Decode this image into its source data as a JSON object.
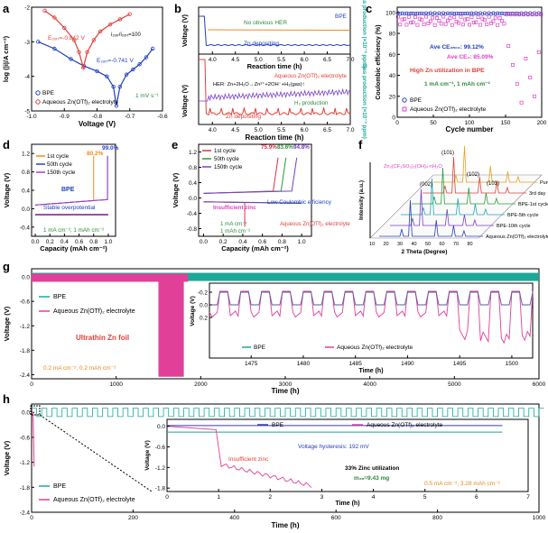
{
  "chart_data": [
    {
      "panel": "a",
      "type": "line",
      "xlabel": "Voltage (V)",
      "ylabel": "log (|i|/A cm⁻²)",
      "xlim": [
        -1.0,
        -0.6
      ],
      "ylim": [
        -5,
        -2
      ],
      "xticks": [
        "-1.0",
        "-0.9",
        "-0.8",
        "-0.7",
        "-0.6"
      ],
      "yticks": [
        "-5",
        "-4",
        "-3",
        "-2"
      ],
      "series": [
        {
          "name": "BPE",
          "color": "#1f3fbf",
          "x": [
            -0.98,
            -0.93,
            -0.88,
            -0.84,
            -0.8,
            -0.77,
            -0.75,
            -0.741,
            -0.73,
            -0.71,
            -0.69,
            -0.67,
            -0.65,
            -0.63
          ],
          "y": [
            -3.0,
            -3.2,
            -3.5,
            -3.7,
            -3.85,
            -4.0,
            -4.3,
            -4.85,
            -4.3,
            -3.95,
            -3.8,
            -3.65,
            -3.45,
            -3.2
          ]
        },
        {
          "name": "Aqueous Zn(OTf)₂ electrolyte",
          "color": "#e0403a",
          "x": [
            -0.96,
            -0.93,
            -0.9,
            -0.87,
            -0.855,
            -0.842,
            -0.83,
            -0.81,
            -0.79,
            -0.76,
            -0.73,
            -0.7
          ],
          "y": [
            -2.1,
            -2.3,
            -2.6,
            -2.95,
            -3.3,
            -3.75,
            -3.3,
            -2.95,
            -2.7,
            -2.5,
            -2.35,
            -2.2
          ]
        }
      ],
      "annotations": {
        "ecorr1": "E₂ₒᵣᵣ=-0.842 V",
        "ecorr2": "E₂ₒᵣᵣ=-0.741 V",
        "ratio": "i₂ₒᵣᵣ/i₂ₒᵣᵣ=100",
        "rate": "1 mV s⁻¹"
      }
    },
    {
      "panel": "b",
      "type": "line",
      "xlabel": "Reaction time (h)",
      "ylabel_left": "Voltage (V)",
      "ylabel_right": "Gas production (×10⁻³ ppm)",
      "xlim": [
        3.7,
        7.0
      ],
      "xticks": [
        "4.0",
        "4.5",
        "5.0",
        "5.5",
        "6.0",
        "6.5",
        "7.0"
      ],
      "top": {
        "label": "BPE",
        "note1": "No obvious HER",
        "note2": "Zn depositing",
        "voltage": [
          0.8,
          0.05
        ],
        "gas_level": 1.0
      },
      "bottom": {
        "label": "Aqueous Zn(OTf)₂ electrolyte",
        "note1": "HER: Zn+2H₂O→Zn²⁺+2OH⁻+H₂(gas)↑",
        "note2": "Zn depositing",
        "note3": "H₂ production"
      }
    },
    {
      "panel": "c",
      "type": "scatter",
      "xlabel": "Cycle number",
      "ylabel": "Coulombic efficiency (%)",
      "xlim": [
        0,
        200
      ],
      "ylim": [
        0,
        105
      ],
      "xticks": [
        "0",
        "50",
        "100",
        "150",
        "200"
      ],
      "yticks": [
        "0",
        "20",
        "40",
        "60",
        "80",
        "100"
      ],
      "series": [
        {
          "name": "BPE",
          "color": "#2a3fbf",
          "mean": 99.12
        },
        {
          "name": "Aqueous Zn(OTf)₂ electrolyte",
          "color": "#e040c8",
          "mean": 85.09
        }
      ],
      "annotations": {
        "ce1": "Ave CE₂ₙ₀₂: 99.12%",
        "ce2": "Ave CE₂: 85.09%",
        "note": "High Zn utilization in BPE",
        "cond": "1 mA cm⁻², 1 mAh cm⁻²"
      }
    },
    {
      "panel": "d",
      "type": "line",
      "xlabel": "Capacity (mAh cm⁻²)",
      "ylabel": "Voltage (V)",
      "xlim": [
        -0.05,
        1.1
      ],
      "ylim": [
        -0.6,
        1.4
      ],
      "xticks": [
        "0.0",
        "0.2",
        "0.4",
        "0.6",
        "0.8",
        "1.0"
      ],
      "yticks": [
        "-0.4",
        "0.0",
        "0.4",
        "0.8",
        "1.2"
      ],
      "series": [
        {
          "name": "1st cycle",
          "color": "#f08a1c",
          "end_capacity": 0.8,
          "label": "80.2%"
        },
        {
          "name": "50th cycle",
          "color": "#2a3fd0",
          "end_capacity": 0.99,
          "label": "99.0%"
        },
        {
          "name": "150th cycle",
          "color": "#a23fc8",
          "end_capacity": 0.99
        }
      ],
      "annotations": {
        "electrolyte": "BPE",
        "note": "Stable overpotential",
        "cond": "1 mA cm⁻², 1 mAh cm⁻²"
      }
    },
    {
      "panel": "e",
      "type": "line",
      "xlabel": "Capacity (mAh cm⁻²)",
      "ylabel": "Voltage (V)",
      "xlim": [
        -0.05,
        1.1
      ],
      "ylim": [
        -1.0,
        1.4
      ],
      "xticks": [
        "0.0",
        "0.2",
        "0.4",
        "0.6",
        "0.8",
        "1.0"
      ],
      "yticks": [
        "-0.8",
        "-0.4",
        "0.0",
        "0.4",
        "0.8",
        "1.2"
      ],
      "series": [
        {
          "name": "1st cycle",
          "color": "#e0304a",
          "label": "75.9%"
        },
        {
          "name": "50th cycle",
          "color": "#2a9a3a",
          "label": "83.6%"
        },
        {
          "name": "150th cycle",
          "color": "#7a3fc8",
          "label": "94.8%"
        }
      ],
      "annotations": {
        "n1": "Insufficient zinc",
        "n2": "Low Coulombic efficiency",
        "cond": "1 mA cm⁻²\n1 mAh cm⁻²",
        "electrolyte": "Aqueous Zn(OTf)₂ electrolyte"
      }
    },
    {
      "panel": "f",
      "type": "line",
      "xlabel": "2 Theta (Degree)",
      "ylabel": "Intensity (a.u.)",
      "xticks": [
        "10",
        "20",
        "30",
        "40",
        "50",
        "60",
        "70",
        "80"
      ],
      "series": [
        "Pure Zn",
        "3rd day",
        "BPE-1st cycle",
        "BPE-5th cycle",
        "BPE-10th cycle",
        "Aqueous Zn(OTf)₂ electrolyte-10th cycle"
      ],
      "peaks": [
        "(002)",
        "(101)",
        "(102)",
        "(103)"
      ],
      "annotation": "Zn₃(CF₃SO₃)₂(OH)₄·nH₂O"
    },
    {
      "panel": "g",
      "type": "line",
      "xlabel": "Time (h)",
      "ylabel": "Voltage (V)",
      "xlim": [
        0,
        6000
      ],
      "ylim": [
        -2.4,
        0.1
      ],
      "xticks": [
        "0",
        "1000",
        "2000",
        "3000",
        "4000",
        "5000",
        "6000"
      ],
      "yticks": [
        "-2.4",
        "-1.8",
        "-1.2",
        "-0.6",
        "0.0"
      ],
      "series": [
        {
          "name": "BPE",
          "color": "#1aa898"
        },
        {
          "name": "Aqueous Zn(OTf)₂ electrolyte",
          "color": "#e04098"
        }
      ],
      "annotations": {
        "foil": "Ultrathin Zn foil",
        "cond": "0.2 mA cm⁻², 0.2 mAh cm⁻²"
      },
      "inset": {
        "xlabel": "Time (h)",
        "ylabel": "Voltage (V)",
        "xlim": [
          1471,
          1502
        ],
        "xticks": [
          "1475",
          "1480",
          "1485",
          "1490",
          "1495",
          "1500"
        ],
        "yticks": [
          "-0.2",
          "0.0",
          "0.2"
        ]
      }
    },
    {
      "panel": "h",
      "type": "line",
      "xlabel": "Time (h)",
      "ylabel": "Voltage (V)",
      "xlim": [
        0,
        1000
      ],
      "ylim": [
        -2.4,
        0.2
      ],
      "xticks": [
        "0",
        "200",
        "400",
        "600",
        "800",
        "1000"
      ],
      "yticks": [
        "-2.4",
        "-1.8",
        "-1.2",
        "-0.6",
        "0.0"
      ],
      "series": [
        {
          "name": "BPE",
          "color": "#1aa898"
        },
        {
          "name": "Aqueous Zn(OTf)₂ electrolyte",
          "color": "#e04098"
        }
      ],
      "inset": {
        "xlabel": "Time (h)",
        "ylabel": "Voltage (V)",
        "xlim": [
          0,
          7
        ],
        "xticks": [
          "0",
          "1",
          "2",
          "3",
          "4",
          "5",
          "6",
          "7"
        ],
        "yticks": [
          "-1.8",
          "-1.2",
          "-0.6",
          "0.0"
        ],
        "annotations": {
          "hys": "Voltage hysteresis: 192 mV",
          "zinc": "Insufficient zinc",
          "util": "33% Zinc utilization",
          "mass": "m₂ₙ=9.43 mg",
          "cond": "0.5 mA cm⁻², 3.28 mAh cm⁻²"
        }
      }
    }
  ]
}
